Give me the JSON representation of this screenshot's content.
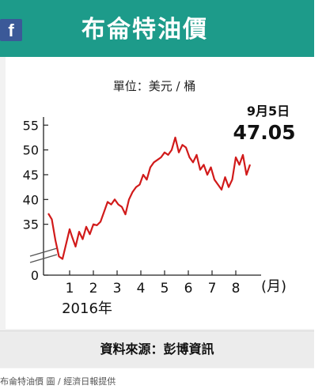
{
  "title": "布侖特油價",
  "social_icon": "facebook-icon",
  "social_label": "f",
  "unit_label": "單位：美元 / 桶",
  "source_label": "資料來源：彭博資訊",
  "caption": "布侖特油價 圖 / 經濟日報提供",
  "colors": {
    "header": "#1d9b8a",
    "line": "#d11a1a",
    "facebook": "#3b5998"
  },
  "chart_data": {
    "type": "line",
    "title": "布侖特油價",
    "ylabel": "單位：美元 / 桶",
    "xlabel": "(月)",
    "year_label": "2016年",
    "x_ticks": [
      "1",
      "2",
      "3",
      "4",
      "5",
      "6",
      "7",
      "8"
    ],
    "y_ticks": [
      0,
      35,
      40,
      45,
      50,
      55
    ],
    "ylim": [
      30,
      56
    ],
    "axis_break": true,
    "grid": false,
    "annotation": {
      "date": "9月5日",
      "value": "47.05"
    },
    "series": [
      {
        "x": [
          0.1,
          0.25,
          0.4,
          0.55,
          0.7,
          0.85,
          1.0,
          1.1,
          1.25,
          1.4,
          1.55,
          1.7,
          1.85,
          2.0,
          2.15,
          2.3,
          2.45,
          2.6,
          2.75,
          2.9,
          3.05,
          3.2,
          3.35,
          3.5,
          3.65,
          3.8,
          3.95,
          4.1,
          4.25,
          4.4,
          4.55,
          4.7,
          4.85,
          5.0,
          5.15,
          5.3,
          5.45,
          5.6,
          5.75,
          5.9,
          6.05,
          6.2,
          6.35,
          6.5,
          6.65,
          6.8,
          6.95,
          7.1,
          7.25,
          7.4,
          7.55,
          7.7,
          7.85,
          8.0,
          8.15,
          8.3,
          8.45,
          8.6
        ],
        "values": [
          37.2,
          36.0,
          31.8,
          28.5,
          28.0,
          31.0,
          34.0,
          32.5,
          30.5,
          33.5,
          32.0,
          34.5,
          33.0,
          35.0,
          34.8,
          35.5,
          37.5,
          39.5,
          39.0,
          40.0,
          39.0,
          38.5,
          37.0,
          40.0,
          41.5,
          42.5,
          43.0,
          45.0,
          44.0,
          46.5,
          47.5,
          48.0,
          48.5,
          49.5,
          49.0,
          50.0,
          52.5,
          49.5,
          51.0,
          50.5,
          48.5,
          47.5,
          49.0,
          46.0,
          47.0,
          45.0,
          46.5,
          44.0,
          43.0,
          42.0,
          44.5,
          42.5,
          44.0,
          48.5,
          47.0,
          49.0,
          45.0,
          47.05
        ]
      }
    ]
  }
}
